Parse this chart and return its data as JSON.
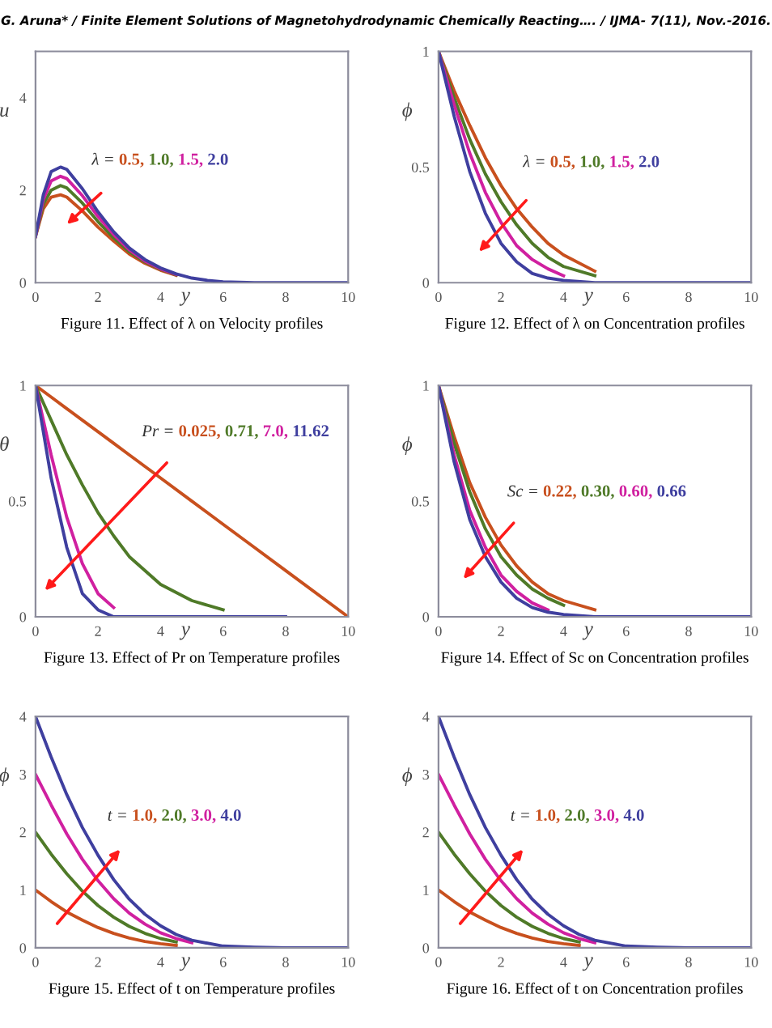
{
  "chart_data": [
    {
      "type": "line",
      "title": "Figure 11. Effect of λ on Velocity profiles",
      "xlabel": "y",
      "ylabel": "u",
      "legend_title": "λ =",
      "annotations": [
        "G. Aruna* / Finite Element Solutions of Magnetohydrodynamic Chemically Reacting…. / IJMA- 7(11), Nov.-2016."
      ],
      "xlim": [
        0,
        10
      ],
      "xticks": [
        0,
        2,
        4,
        6,
        8,
        10
      ],
      "ylim": [
        0,
        5
      ],
      "yticks": [
        0,
        2,
        4
      ],
      "grid": false,
      "marker": "none",
      "line_style": "solid",
      "x": [
        0,
        0.25,
        0.5,
        0.8,
        1,
        1.5,
        2,
        2.5,
        3,
        3.5,
        4,
        4.5,
        5,
        5.5,
        6,
        7,
        8,
        10
      ],
      "series": [
        {
          "name": "0.5,",
          "color": "#c8501e",
          "values": [
            1,
            1.6,
            1.85,
            1.9,
            1.85,
            1.55,
            1.2,
            0.9,
            0.62,
            0.42,
            0.27,
            0.16,
            null,
            null,
            null,
            null,
            null,
            null
          ]
        },
        {
          "name": "1.0,",
          "color": "#4f7a28",
          "values": [
            1,
            1.7,
            2.0,
            2.1,
            2.05,
            1.72,
            1.32,
            0.97,
            0.67,
            0.45,
            0.29,
            0.17,
            null,
            null,
            null,
            null,
            null,
            null
          ]
        },
        {
          "name": "1.5,",
          "color": "#d020a0",
          "values": [
            1,
            1.8,
            2.2,
            2.3,
            2.25,
            1.88,
            1.43,
            1.04,
            0.71,
            0.47,
            0.3,
            0.18,
            null,
            null,
            null,
            null,
            null,
            null
          ]
        },
        {
          "name": "2.0",
          "color": "#3f3f9f",
          "values": [
            1,
            1.9,
            2.4,
            2.5,
            2.45,
            2.03,
            1.53,
            1.1,
            0.75,
            0.5,
            0.32,
            0.19,
            0.1,
            0.05,
            0.02,
            0,
            0,
            0
          ]
        }
      ]
    },
    {
      "type": "line",
      "title": "Figure 12. Effect of λ on Concentration profiles",
      "xlabel": "y",
      "ylabel": "ϕ",
      "legend_title": "λ =",
      "xlim": [
        0,
        10
      ],
      "xticks": [
        0,
        2,
        4,
        6,
        8,
        10
      ],
      "ylim": [
        0,
        1
      ],
      "yticks": [
        0,
        0.5,
        1
      ],
      "grid": false,
      "marker": "none",
      "line_style": "solid",
      "x": [
        0,
        0.5,
        1,
        1.5,
        2,
        2.5,
        3,
        3.5,
        4,
        5,
        6,
        7,
        8,
        9,
        10
      ],
      "series": [
        {
          "name": "0.5,",
          "color": "#c8501e",
          "values": [
            1,
            0.83,
            0.68,
            0.54,
            0.42,
            0.32,
            0.24,
            0.17,
            0.12,
            0.05,
            null,
            null,
            null,
            null,
            null
          ]
        },
        {
          "name": "1.0,",
          "color": "#4f7a28",
          "values": [
            1,
            0.8,
            0.62,
            0.47,
            0.35,
            0.25,
            0.17,
            0.11,
            0.07,
            0.03,
            null,
            null,
            null,
            null,
            null
          ]
        },
        {
          "name": "1.5,",
          "color": "#d020a0",
          "values": [
            1,
            0.77,
            0.56,
            0.39,
            0.26,
            0.16,
            0.1,
            0.06,
            0.03,
            null,
            null,
            null,
            null,
            null,
            null
          ]
        },
        {
          "name": "2.0",
          "color": "#3f3f9f",
          "values": [
            1,
            0.72,
            0.48,
            0.3,
            0.17,
            0.09,
            0.04,
            0.02,
            0.01,
            0,
            0,
            0,
            0,
            0,
            0
          ]
        }
      ]
    },
    {
      "type": "line",
      "title": "Figure 13. Effect of Pr on Temperature profiles",
      "xlabel": "y",
      "ylabel": "θ",
      "legend_title": "Pr =",
      "xlim": [
        0,
        10
      ],
      "xticks": [
        0,
        2,
        4,
        6,
        8,
        10
      ],
      "ylim": [
        0,
        1
      ],
      "yticks": [
        0,
        0.5,
        1
      ],
      "grid": false,
      "marker": "none",
      "line_style": "solid",
      "x": [
        0,
        0.5,
        1,
        1.5,
        2,
        2.5,
        3,
        4,
        5,
        6,
        7,
        8,
        10
      ],
      "series": [
        {
          "name": "0.025,",
          "color": "#c8501e",
          "values": [
            1,
            0.95,
            0.9,
            0.85,
            0.8,
            0.75,
            0.7,
            0.6,
            0.5,
            0.4,
            0.3,
            0.2,
            0
          ]
        },
        {
          "name": "0.71,",
          "color": "#4f7a28",
          "values": [
            1,
            0.85,
            0.7,
            0.57,
            0.45,
            0.35,
            0.26,
            0.14,
            0.07,
            0.03,
            null,
            null,
            null
          ]
        },
        {
          "name": "7.0,",
          "color": "#d020a0",
          "values": [
            1,
            0.7,
            0.43,
            0.23,
            0.1,
            0.04,
            null,
            null,
            null,
            null,
            null,
            null,
            null
          ]
        },
        {
          "name": "11.62",
          "color": "#3f3f9f",
          "values": [
            1,
            0.6,
            0.3,
            0.1,
            0.03,
            0,
            0,
            0,
            0,
            0,
            0,
            0,
            null
          ]
        }
      ]
    },
    {
      "type": "line",
      "title": "Figure 14. Effect of Sc on Concentration profiles",
      "xlabel": "y",
      "ylabel": "ϕ",
      "legend_title": "Sc =",
      "xlim": [
        0,
        10
      ],
      "xticks": [
        0,
        2,
        4,
        6,
        8,
        10
      ],
      "ylim": [
        0,
        1
      ],
      "yticks": [
        0,
        0.5,
        1
      ],
      "grid": false,
      "marker": "none",
      "line_style": "solid",
      "x": [
        0,
        0.5,
        1,
        1.5,
        2,
        2.5,
        3,
        3.5,
        4,
        5,
        6,
        7,
        8,
        10
      ],
      "series": [
        {
          "name": "0.22,",
          "color": "#c8501e",
          "values": [
            1,
            0.78,
            0.58,
            0.43,
            0.31,
            0.22,
            0.15,
            0.1,
            0.07,
            0.03,
            null,
            null,
            null,
            null
          ]
        },
        {
          "name": "0.30,",
          "color": "#4f7a28",
          "values": [
            1,
            0.75,
            0.54,
            0.38,
            0.26,
            0.18,
            0.12,
            0.08,
            0.05,
            null,
            null,
            null,
            null,
            null
          ]
        },
        {
          "name": "0.60,",
          "color": "#d020a0",
          "values": [
            1,
            0.7,
            0.46,
            0.3,
            0.18,
            0.11,
            0.06,
            0.03,
            null,
            null,
            null,
            null,
            null,
            null
          ]
        },
        {
          "name": "0.66",
          "color": "#3f3f9f",
          "values": [
            1,
            0.67,
            0.42,
            0.26,
            0.15,
            0.08,
            0.04,
            0.02,
            0.01,
            0,
            0,
            0,
            0,
            0
          ]
        }
      ]
    },
    {
      "type": "line",
      "title": "Figure 15. Effect of t on Temperature profiles",
      "xlabel": "y",
      "ylabel": "ϕ",
      "legend_title": "t =",
      "xlim": [
        0,
        10
      ],
      "xticks": [
        0,
        2,
        4,
        6,
        8,
        10
      ],
      "ylim": [
        0,
        4
      ],
      "yticks": [
        0,
        1,
        2,
        3,
        4
      ],
      "grid": false,
      "marker": "none",
      "line_style": "solid",
      "x": [
        0,
        0.5,
        1,
        1.5,
        2,
        2.5,
        3,
        3.5,
        4,
        4.5,
        5,
        6,
        7,
        8,
        10
      ],
      "series": [
        {
          "name": "1.0,",
          "color": "#c8501e",
          "values": [
            1,
            0.8,
            0.62,
            0.48,
            0.35,
            0.25,
            0.17,
            0.11,
            0.07,
            0.04,
            null,
            null,
            null,
            null,
            null
          ]
        },
        {
          "name": "2.0,",
          "color": "#4f7a28",
          "values": [
            2,
            1.62,
            1.28,
            0.98,
            0.73,
            0.53,
            0.37,
            0.25,
            0.16,
            0.1,
            null,
            null,
            null,
            null,
            null
          ]
        },
        {
          "name": "3.0,",
          "color": "#d020a0",
          "values": [
            3,
            2.47,
            1.97,
            1.53,
            1.16,
            0.85,
            0.6,
            0.41,
            0.26,
            0.16,
            0.09,
            null,
            null,
            null,
            null
          ]
        },
        {
          "name": "4.0",
          "color": "#3f3f9f",
          "values": [
            4,
            3.3,
            2.65,
            2.08,
            1.6,
            1.18,
            0.84,
            0.58,
            0.38,
            0.23,
            0.13,
            0.03,
            0.01,
            0,
            0
          ]
        }
      ]
    },
    {
      "type": "line",
      "title": "Figure 16. Effect of t on Concentration profiles",
      "xlabel": "y",
      "ylabel": "ϕ",
      "legend_title": "t =",
      "xlim": [
        0,
        10
      ],
      "xticks": [
        0,
        2,
        4,
        6,
        8,
        10
      ],
      "ylim": [
        0,
        4
      ],
      "yticks": [
        0,
        1,
        2,
        3,
        4
      ],
      "grid": false,
      "marker": "none",
      "line_style": "solid",
      "x": [
        0,
        0.5,
        1,
        1.5,
        2,
        2.5,
        3,
        3.5,
        4,
        4.5,
        5,
        6,
        7,
        8,
        10
      ],
      "series": [
        {
          "name": "1.0,",
          "color": "#c8501e",
          "values": [
            1,
            0.8,
            0.62,
            0.48,
            0.35,
            0.25,
            0.17,
            0.11,
            0.07,
            0.04,
            null,
            null,
            null,
            null,
            null
          ]
        },
        {
          "name": "2.0,",
          "color": "#4f7a28",
          "values": [
            2,
            1.62,
            1.28,
            0.98,
            0.73,
            0.53,
            0.37,
            0.25,
            0.16,
            0.1,
            null,
            null,
            null,
            null,
            null
          ]
        },
        {
          "name": "3.0,",
          "color": "#d020a0",
          "values": [
            3,
            2.47,
            1.97,
            1.53,
            1.16,
            0.85,
            0.6,
            0.41,
            0.26,
            0.16,
            0.09,
            null,
            null,
            null,
            null
          ]
        },
        {
          "name": "4.0",
          "color": "#3f3f9f",
          "values": [
            4,
            3.3,
            2.65,
            2.08,
            1.6,
            1.18,
            0.84,
            0.58,
            0.38,
            0.23,
            0.13,
            0.03,
            0.01,
            0,
            0
          ]
        }
      ]
    }
  ]
}
